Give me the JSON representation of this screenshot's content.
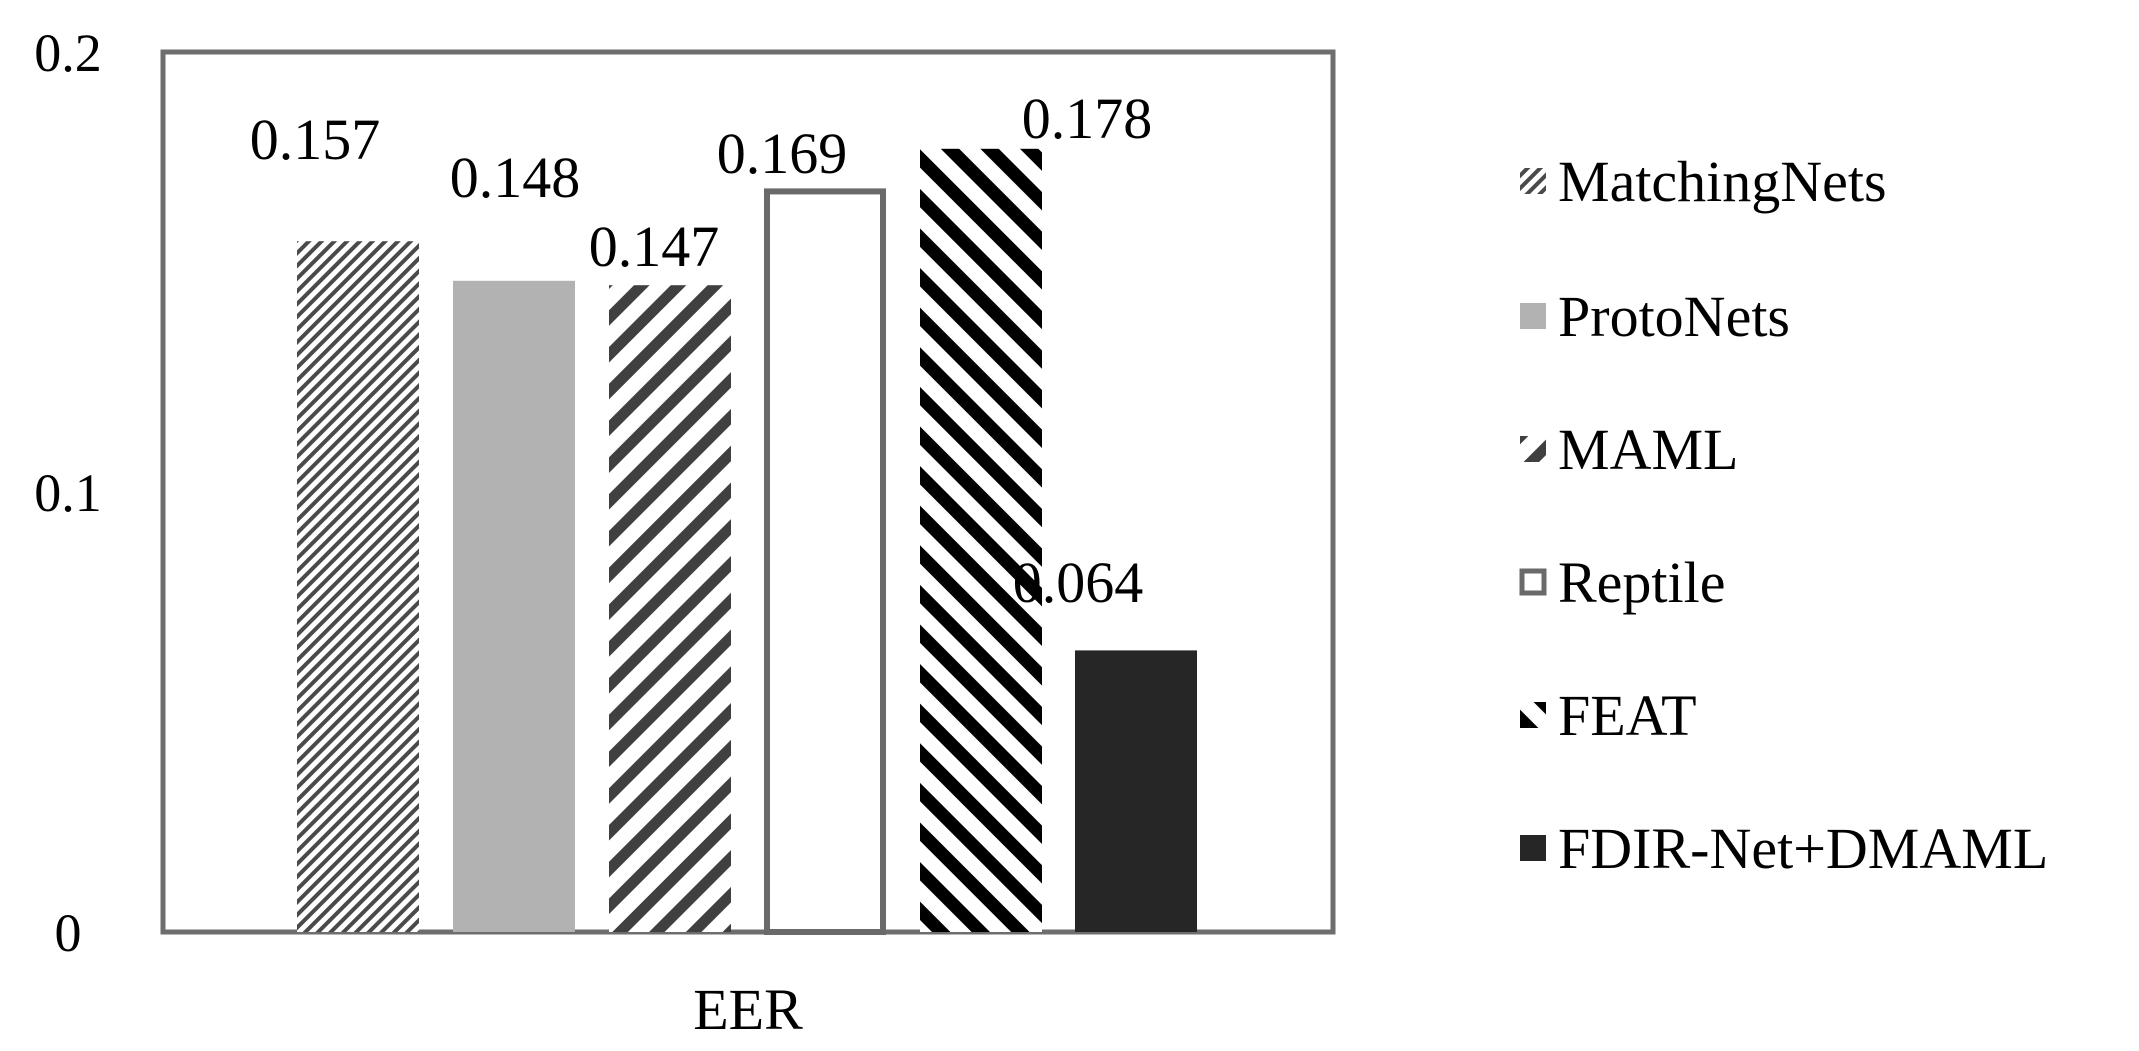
{
  "chart_data": {
    "type": "bar",
    "title": "",
    "xlabel": "",
    "ylabel": "",
    "categories": [
      "EER"
    ],
    "ylim": [
      0,
      0.2
    ],
    "yticks": [
      "0",
      "0.1",
      "0.2"
    ],
    "grid": false,
    "legend_position": "right",
    "series": [
      {
        "name": "MatchingNets",
        "values": [
          0.157
        ],
        "label": "0.157",
        "pattern": "fine-diagonal",
        "color": "#4a4a4a"
      },
      {
        "name": "ProtoNets",
        "values": [
          0.148
        ],
        "label": "0.148",
        "pattern": "solid",
        "color": "#b2b2b2"
      },
      {
        "name": "MAML",
        "values": [
          0.147
        ],
        "label": "0.147",
        "pattern": "wide-upward-diagonal",
        "color": "#404040"
      },
      {
        "name": "Reptile",
        "values": [
          0.169
        ],
        "label": "0.169",
        "pattern": "outline",
        "color": "#6a6a6a"
      },
      {
        "name": "FEAT",
        "values": [
          0.178
        ],
        "label": "0.178",
        "pattern": "wide-downward-diagonal",
        "color": "#000000"
      },
      {
        "name": "FDIR-Net+DMAML",
        "values": [
          0.064
        ],
        "label": "0.064",
        "pattern": "solid",
        "color": "#262626"
      }
    ]
  }
}
